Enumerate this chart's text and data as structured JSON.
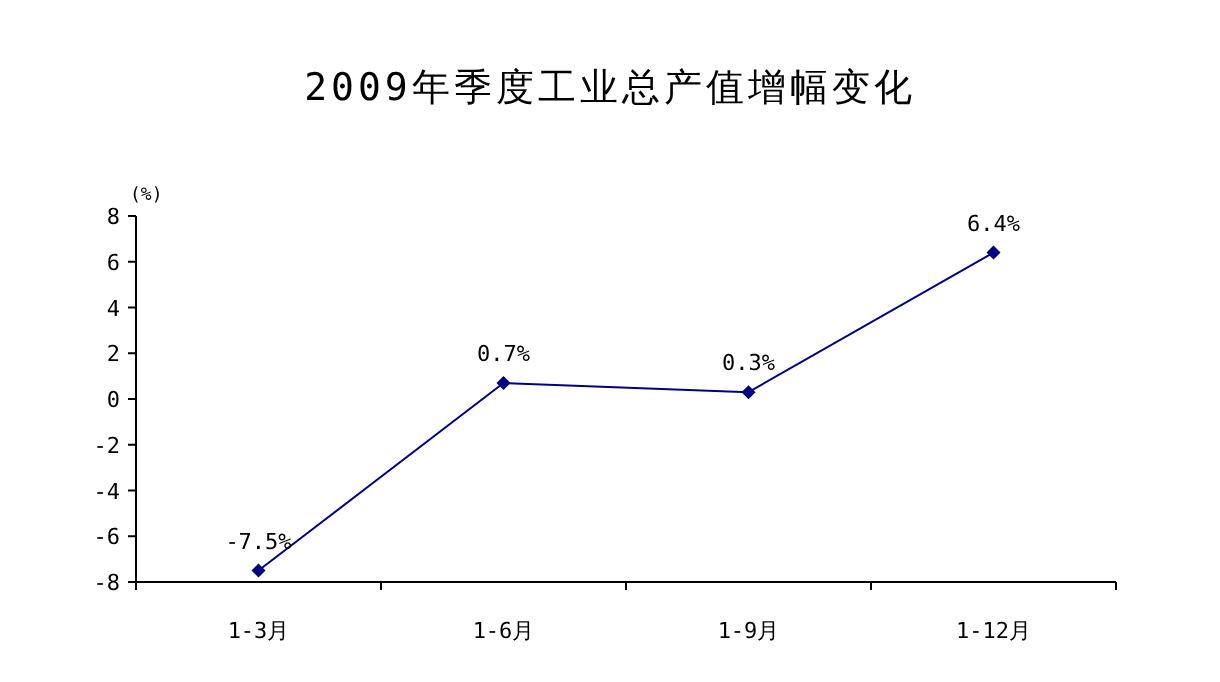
{
  "chart_data": {
    "type": "line",
    "title": "2009年季度工业总产值增幅变化",
    "ylabel": "(%)",
    "categories": [
      "1-3月",
      "1-6月",
      "1-9月",
      "1-12月"
    ],
    "values": [
      -7.5,
      0.7,
      0.3,
      6.4
    ],
    "value_labels": [
      "-7.5%",
      "0.7%",
      "0.3%",
      "6.4%"
    ],
    "color": "#000080",
    "marker": "diamond",
    "line_style": "solid",
    "ylim": [
      -8,
      8
    ],
    "yticks": [
      -8,
      -6,
      -4,
      -2,
      0,
      2,
      4,
      6,
      8
    ]
  }
}
